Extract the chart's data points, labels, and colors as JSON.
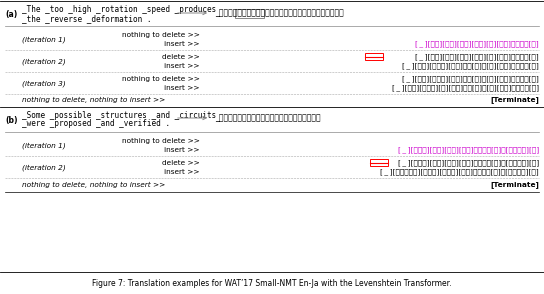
{
  "figsize": [
    5.44,
    2.94
  ],
  "dpi": 100,
  "bg_color": "#ffffff",
  "caption": "Figure 7: Translation examples for WAT’17 Small-NMT En-Ja with the Levenshtein Transformer.",
  "border_color": "#aaaaaa",
  "section_a": {
    "label": "(a)",
    "src_line1": "_The _too _high _rotation _speed _produces",
    "src_line2": "_the _reverse _deformation .",
    "tgt": "_しかし，回転速度が大きすぎると，逆向きの変形が生じる。",
    "tgt_highlight": "回転速度",
    "iterations": [
      {
        "label": "(iteration 1)",
        "delete_label": "nothing to delete >>",
        "delete_text": null,
        "insert_label": "insert >>",
        "insert_text": "[ _ ][回転][回転][すぎ][ると][逆][変形]が生じる[，]",
        "insert_color": "#cc00cc"
      },
      {
        "label": "(iteration 2)",
        "delete_label": "delete >>",
        "delete_text": "[ _ ][回転][回転][すぎ][ると][逆][変形]が生じる[，]",
        "delete_color": "#000000",
        "insert_label": "insert >>",
        "insert_text": "[ _ ][回転][速度が][すぎ]ると[，]　[逆][変形]が生じる[，]",
        "insert_color": "#000000"
      },
      {
        "label": "(iteration 3)",
        "delete_label": "nothing to delete >>",
        "delete_text": "[ _ ][回転][速度が][すぎ]ると[，]　[逆][変形]が生じる[，]",
        "delete_color": "#000000",
        "insert_label": "insert >>",
        "insert_text": "[ _ ][回転][速度が][高][すぎ]ると[，]　[逆][変形]が生じる[，]",
        "insert_color": "#000000"
      }
    ],
    "terminate": "nothing to delete, nothing to insert >>"
  },
  "section_b": {
    "label": "(b)",
    "src_line1": "_Some _possible _structures _and _circuits",
    "src_line2": "_were _proposed _and _verified .",
    "tgt": "_いくつかの可能な構造と回路を提案し検証した。",
    "iterations": [
      {
        "label": "(iteration 1)",
        "delete_label": "nothing to delete >>",
        "delete_text": null,
        "insert_label": "insert >>",
        "insert_text": "[ _ ][可能な][構造][回路][回路]を提案し[，]　[検証した][，]",
        "insert_color": "#cc00cc"
      },
      {
        "label": "(iteration 2)",
        "delete_label": "delete >>",
        "delete_text": "[ _ ][可能な][構造][回路][回路]を提案し[，]　[検証した][，]",
        "delete_color": "#000000",
        "insert_label": "insert >>",
        "insert_text": "[ _ ][いくつかの][可能な][構造と][回路]を提案し[，]　[検証した][，]",
        "insert_color": "#000000"
      }
    ],
    "terminate": "nothing to delete, nothing to insert >>"
  }
}
